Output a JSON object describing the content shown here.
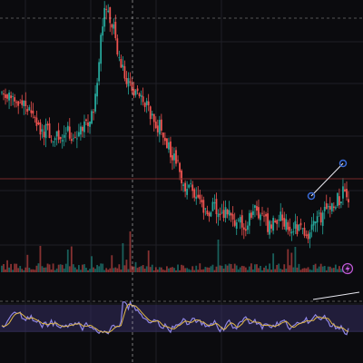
{
  "colors": {
    "background": "#0b0b0e",
    "grid": "#1f1f26",
    "up_candle": "#26a69a",
    "down_candle": "#ef5350",
    "price_line": "#7a2a2a",
    "crosshair": "#cfcfcf",
    "trendline": "#e8e8f0",
    "anchor": "#3a6bd8",
    "rsi_line": "#8f86e6",
    "rsi_signal": "#e0b84a",
    "rsi_band": "#3b3470",
    "badge": "#c25ad8"
  },
  "icons": {
    "alert_badge": "lightning-icon"
  },
  "chart_data": [
    {
      "type": "candlestick",
      "panel": "price",
      "grid": true,
      "crosshair": true,
      "trendline": true,
      "close_path": [
        62,
        63,
        64,
        61,
        58,
        60,
        59,
        57,
        55,
        52,
        50,
        48,
        47,
        46,
        45,
        44,
        46,
        48,
        47,
        45,
        44,
        46,
        48,
        50,
        52,
        60,
        75,
        92,
        100,
        96,
        90,
        82,
        75,
        70,
        66,
        64,
        62,
        60,
        58,
        57,
        55,
        52,
        50,
        47,
        44,
        40,
        37,
        33,
        30,
        26,
        24,
        22,
        20,
        18,
        16,
        15,
        14,
        15,
        16,
        14,
        13,
        12,
        11,
        10,
        9,
        8,
        10,
        12,
        14,
        13,
        11,
        9,
        8,
        9,
        10,
        11,
        10,
        9,
        8,
        7,
        6,
        5,
        4,
        6,
        8,
        10,
        12,
        13,
        15,
        17,
        19,
        21,
        22,
        20
      ]
    },
    {
      "type": "volume",
      "panel": "volume"
    },
    {
      "type": "oscillator",
      "panel": "rsi",
      "series": [
        {
          "values": []
        },
        {
          "values": []
        }
      ]
    }
  ]
}
